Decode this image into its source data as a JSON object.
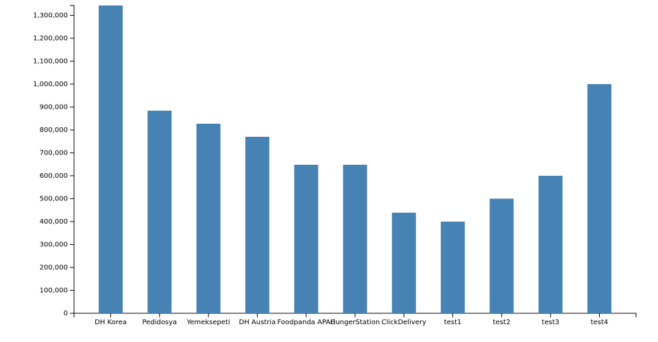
{
  "chart_data": {
    "type": "bar",
    "categories": [
      "DH Korea",
      "Pedidosya",
      "Yemeksepeti",
      "DH Austria",
      "Foodpanda APAC",
      "HungerStation",
      "ClickDelivery",
      "test1",
      "test2",
      "test3",
      "test4"
    ],
    "values": [
      1343000,
      884000,
      827000,
      770000,
      648000,
      648000,
      439000,
      400000,
      500000,
      600000,
      1000000
    ],
    "color": "#4682b4",
    "ylim": [
      0,
      1343000
    ],
    "yticks": [
      0,
      {
        "value": 100000,
        "label": "100,000"
      },
      {
        "value": 200000,
        "label": "200,000"
      },
      {
        "value": 300000,
        "label": "300,000"
      },
      {
        "value": 400000,
        "label": "400,000"
      },
      {
        "value": 500000,
        "label": "500,000"
      },
      {
        "value": 600000,
        "label": "600,000"
      },
      {
        "value": 700000,
        "label": "700,000"
      },
      {
        "value": 800000,
        "label": "800,000"
      },
      {
        "value": 900000,
        "label": "900,000"
      },
      {
        "value": 1000000,
        "label": "1,000,000"
      },
      {
        "value": 1100000,
        "label": "1,100,000"
      },
      {
        "value": 1200000,
        "label": "1,200,000"
      },
      {
        "value": 1300000,
        "label": "1,300,000"
      }
    ],
    "grid": false
  }
}
